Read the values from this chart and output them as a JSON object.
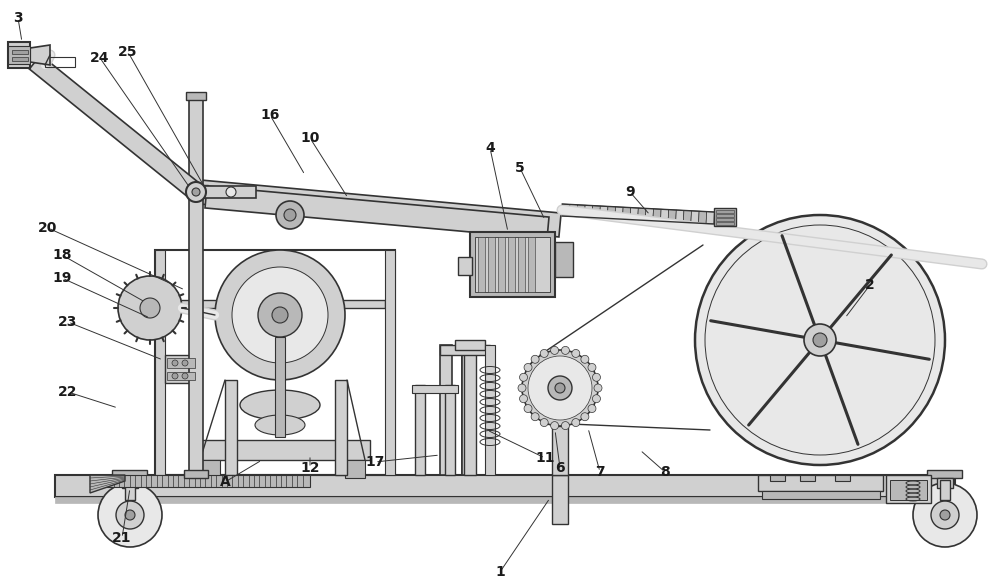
{
  "bg_color": "#ffffff",
  "lc": "#333333",
  "gray1": "#e8e8e8",
  "gray2": "#d0d0d0",
  "gray3": "#b8b8b8",
  "gray4": "#a0a0a0",
  "gray5": "#888888",
  "dark": "#555555",
  "labels": [
    [
      "1",
      500,
      572
    ],
    [
      "2",
      870,
      285
    ],
    [
      "3",
      18,
      18
    ],
    [
      "4",
      490,
      148
    ],
    [
      "5",
      520,
      168
    ],
    [
      "6",
      560,
      468
    ],
    [
      "7",
      600,
      472
    ],
    [
      "8",
      665,
      472
    ],
    [
      "9",
      630,
      192
    ],
    [
      "10",
      310,
      138
    ],
    [
      "11",
      545,
      458
    ],
    [
      "12",
      310,
      468
    ],
    [
      "16",
      270,
      115
    ],
    [
      "17",
      375,
      462
    ],
    [
      "18",
      62,
      255
    ],
    [
      "19",
      62,
      278
    ],
    [
      "20",
      48,
      228
    ],
    [
      "21",
      122,
      538
    ],
    [
      "22",
      68,
      392
    ],
    [
      "23",
      68,
      322
    ],
    [
      "24",
      100,
      58
    ],
    [
      "25",
      128,
      52
    ],
    [
      "A",
      225,
      482
    ]
  ]
}
